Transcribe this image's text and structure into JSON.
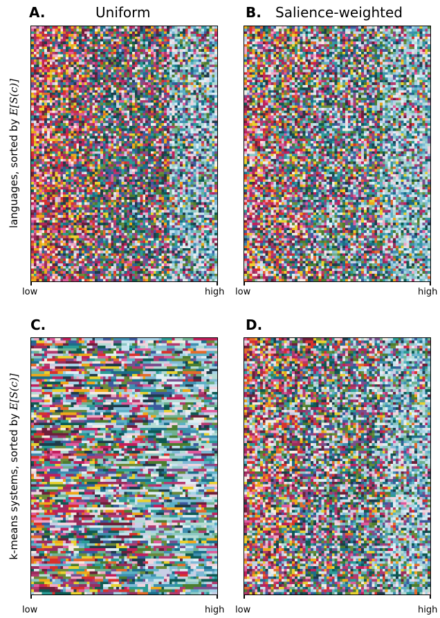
{
  "chart_data": [
    {
      "type": "heatmap",
      "panel": "A.",
      "title": "Uniform",
      "ylabel_prefix": "languages, sorted by ",
      "ylabel_math": "E[S(c)]",
      "x_tick_labels": [
        "low",
        "high"
      ],
      "cols": 70,
      "rows": 100,
      "pattern": "colorful noise; warm colors concentrated at low end, teal/blue/green toward high end",
      "blend": 0.9,
      "rowdrift": 0.0,
      "seed": 11
    },
    {
      "type": "heatmap",
      "panel": "B.",
      "title": "Salience-weighted",
      "x_tick_labels": [
        "low",
        "high"
      ],
      "cols": 70,
      "rows": 100,
      "pattern": "colorful noise; warm at low end, light blue/teal/green at high end",
      "blend": 1.1,
      "rowdrift": 0.0,
      "seed": 23
    },
    {
      "type": "heatmap",
      "panel": "C.",
      "title": "",
      "ylabel_prefix": "k-means systems, sorted by ",
      "ylabel_math": "E[S(c)]",
      "x_tick_labels": [
        "low",
        "high"
      ],
      "cols": 70,
      "rows": 100,
      "pattern": "horizontal streaks; warm at low end, dark/teal middle, pale pink and light blue at high end",
      "blend": 1.2,
      "rowdrift": 1.0,
      "seed": 37
    },
    {
      "type": "heatmap",
      "panel": "D.",
      "title": "",
      "x_tick_labels": [
        "low",
        "high"
      ],
      "cols": 70,
      "rows": 100,
      "pattern": "colorful noise; warm at low end, pale blue at high end",
      "blend": 1.1,
      "rowdrift": 0.15,
      "seed": 51
    }
  ],
  "palette": {
    "warm": [
      "#f0a81a",
      "#e8d230",
      "#d8312c",
      "#c21f5c",
      "#e05a9c",
      "#f2a8c4",
      "#9b2d5d",
      "#f4ece2",
      "#6d1f3a",
      "#e36b2c"
    ],
    "mid": [
      "#1b6e8a",
      "#2a9c95",
      "#3c5a9e",
      "#6b8a3a",
      "#1f3b4a",
      "#7a4f8e",
      "#c9cfe6",
      "#0e5a52",
      "#4c7e2f",
      "#b33a6f"
    ],
    "cool": [
      "#a7d4e8",
      "#8ec9c4",
      "#5bb1c7",
      "#c6e4f0",
      "#7fb9d6",
      "#b4dcd4",
      "#6fb290",
      "#f0d4de",
      "#dfeef5",
      "#3f8fb0"
    ]
  }
}
